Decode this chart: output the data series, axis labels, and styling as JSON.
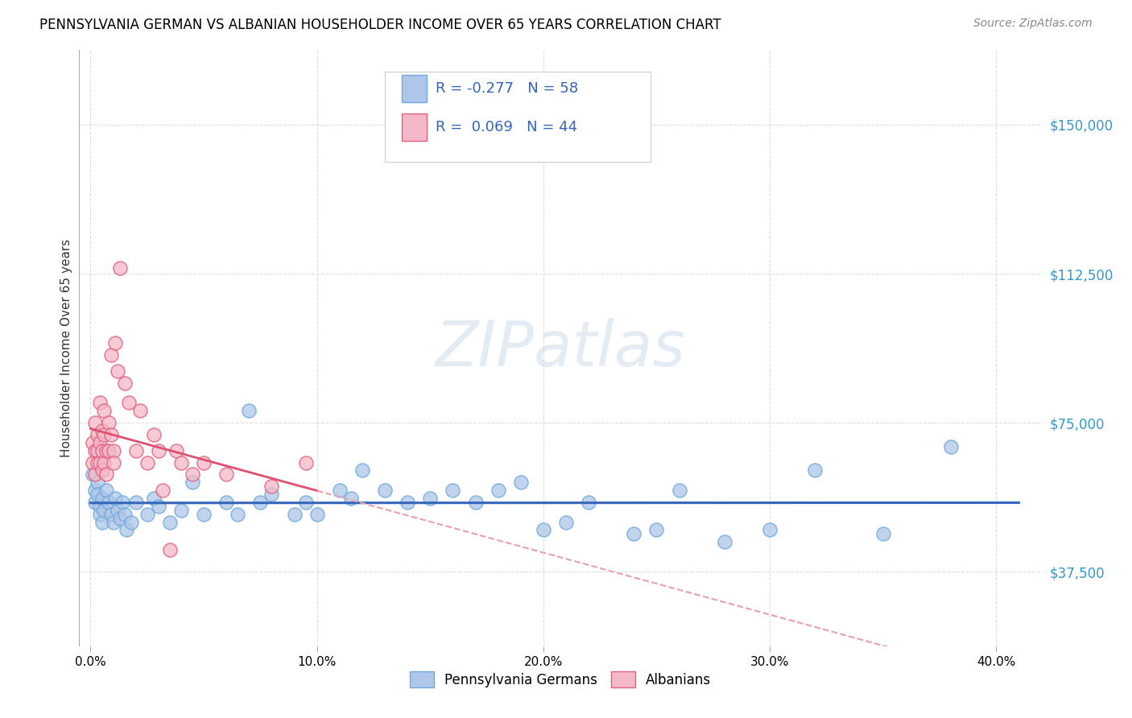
{
  "title": "PENNSYLVANIA GERMAN VS ALBANIAN HOUSEHOLDER INCOME OVER 65 YEARS CORRELATION CHART",
  "source": "Source: ZipAtlas.com",
  "ylabel": "Householder Income Over 65 years",
  "xlabel_ticks": [
    "0.0%",
    "10.0%",
    "20.0%",
    "30.0%",
    "40.0%"
  ],
  "xlabel_vals": [
    0.0,
    0.1,
    0.2,
    0.3,
    0.4
  ],
  "ytick_labels": [
    "$37,500",
    "$75,000",
    "$112,500",
    "$150,000"
  ],
  "ytick_vals": [
    37500,
    75000,
    112500,
    150000
  ],
  "ylim": [
    18750,
    168750
  ],
  "xlim": [
    -0.005,
    0.42
  ],
  "watermark": "ZIPatlas",
  "legend_entry1": {
    "R": "-0.277",
    "N": "58"
  },
  "legend_entry2": {
    "R": "0.069",
    "N": "44"
  },
  "bg_color": "#ffffff",
  "grid_color": "#dddddd",
  "pa_german_color": "#aec6e8",
  "pa_german_edge": "#6fa8dc",
  "albanian_color": "#f4b8c8",
  "albanian_edge": "#e06080",
  "pa_trend_color": "#3366bb",
  "alb_trend_solid_color": "#e05070",
  "alb_trend_dash_color": "#e8a0b0",
  "legend_text_color": "#3366bb",
  "pa_german_x": [
    0.001,
    0.002,
    0.002,
    0.003,
    0.003,
    0.004,
    0.004,
    0.005,
    0.005,
    0.006,
    0.007,
    0.008,
    0.009,
    0.01,
    0.011,
    0.012,
    0.013,
    0.014,
    0.015,
    0.016,
    0.018,
    0.02,
    0.025,
    0.028,
    0.03,
    0.035,
    0.04,
    0.045,
    0.05,
    0.06,
    0.065,
    0.07,
    0.075,
    0.08,
    0.09,
    0.095,
    0.1,
    0.11,
    0.115,
    0.12,
    0.13,
    0.14,
    0.15,
    0.16,
    0.17,
    0.18,
    0.19,
    0.2,
    0.21,
    0.22,
    0.24,
    0.25,
    0.26,
    0.28,
    0.3,
    0.32,
    0.35,
    0.38
  ],
  "pa_german_y": [
    62000,
    58000,
    55000,
    60000,
    57000,
    54000,
    52000,
    56000,
    50000,
    53000,
    58000,
    55000,
    52000,
    50000,
    56000,
    53000,
    51000,
    55000,
    52000,
    48000,
    50000,
    55000,
    52000,
    56000,
    54000,
    50000,
    53000,
    60000,
    52000,
    55000,
    52000,
    78000,
    55000,
    57000,
    52000,
    55000,
    52000,
    58000,
    56000,
    63000,
    58000,
    55000,
    56000,
    58000,
    55000,
    58000,
    60000,
    48000,
    50000,
    55000,
    47000,
    48000,
    58000,
    45000,
    48000,
    63000,
    47000,
    69000
  ],
  "albanian_x": [
    0.001,
    0.001,
    0.002,
    0.002,
    0.002,
    0.003,
    0.003,
    0.003,
    0.004,
    0.004,
    0.004,
    0.005,
    0.005,
    0.005,
    0.006,
    0.006,
    0.006,
    0.007,
    0.007,
    0.008,
    0.008,
    0.009,
    0.009,
    0.01,
    0.01,
    0.011,
    0.012,
    0.013,
    0.015,
    0.017,
    0.02,
    0.022,
    0.025,
    0.028,
    0.03,
    0.032,
    0.035,
    0.038,
    0.04,
    0.045,
    0.05,
    0.06,
    0.08,
    0.095
  ],
  "albanian_y": [
    65000,
    70000,
    68000,
    75000,
    62000,
    72000,
    68000,
    65000,
    80000,
    70000,
    65000,
    73000,
    68000,
    63000,
    78000,
    72000,
    65000,
    68000,
    62000,
    75000,
    68000,
    92000,
    72000,
    68000,
    65000,
    95000,
    88000,
    114000,
    85000,
    80000,
    68000,
    78000,
    65000,
    72000,
    68000,
    58000,
    43000,
    68000,
    65000,
    62000,
    65000,
    62000,
    59000,
    65000
  ]
}
